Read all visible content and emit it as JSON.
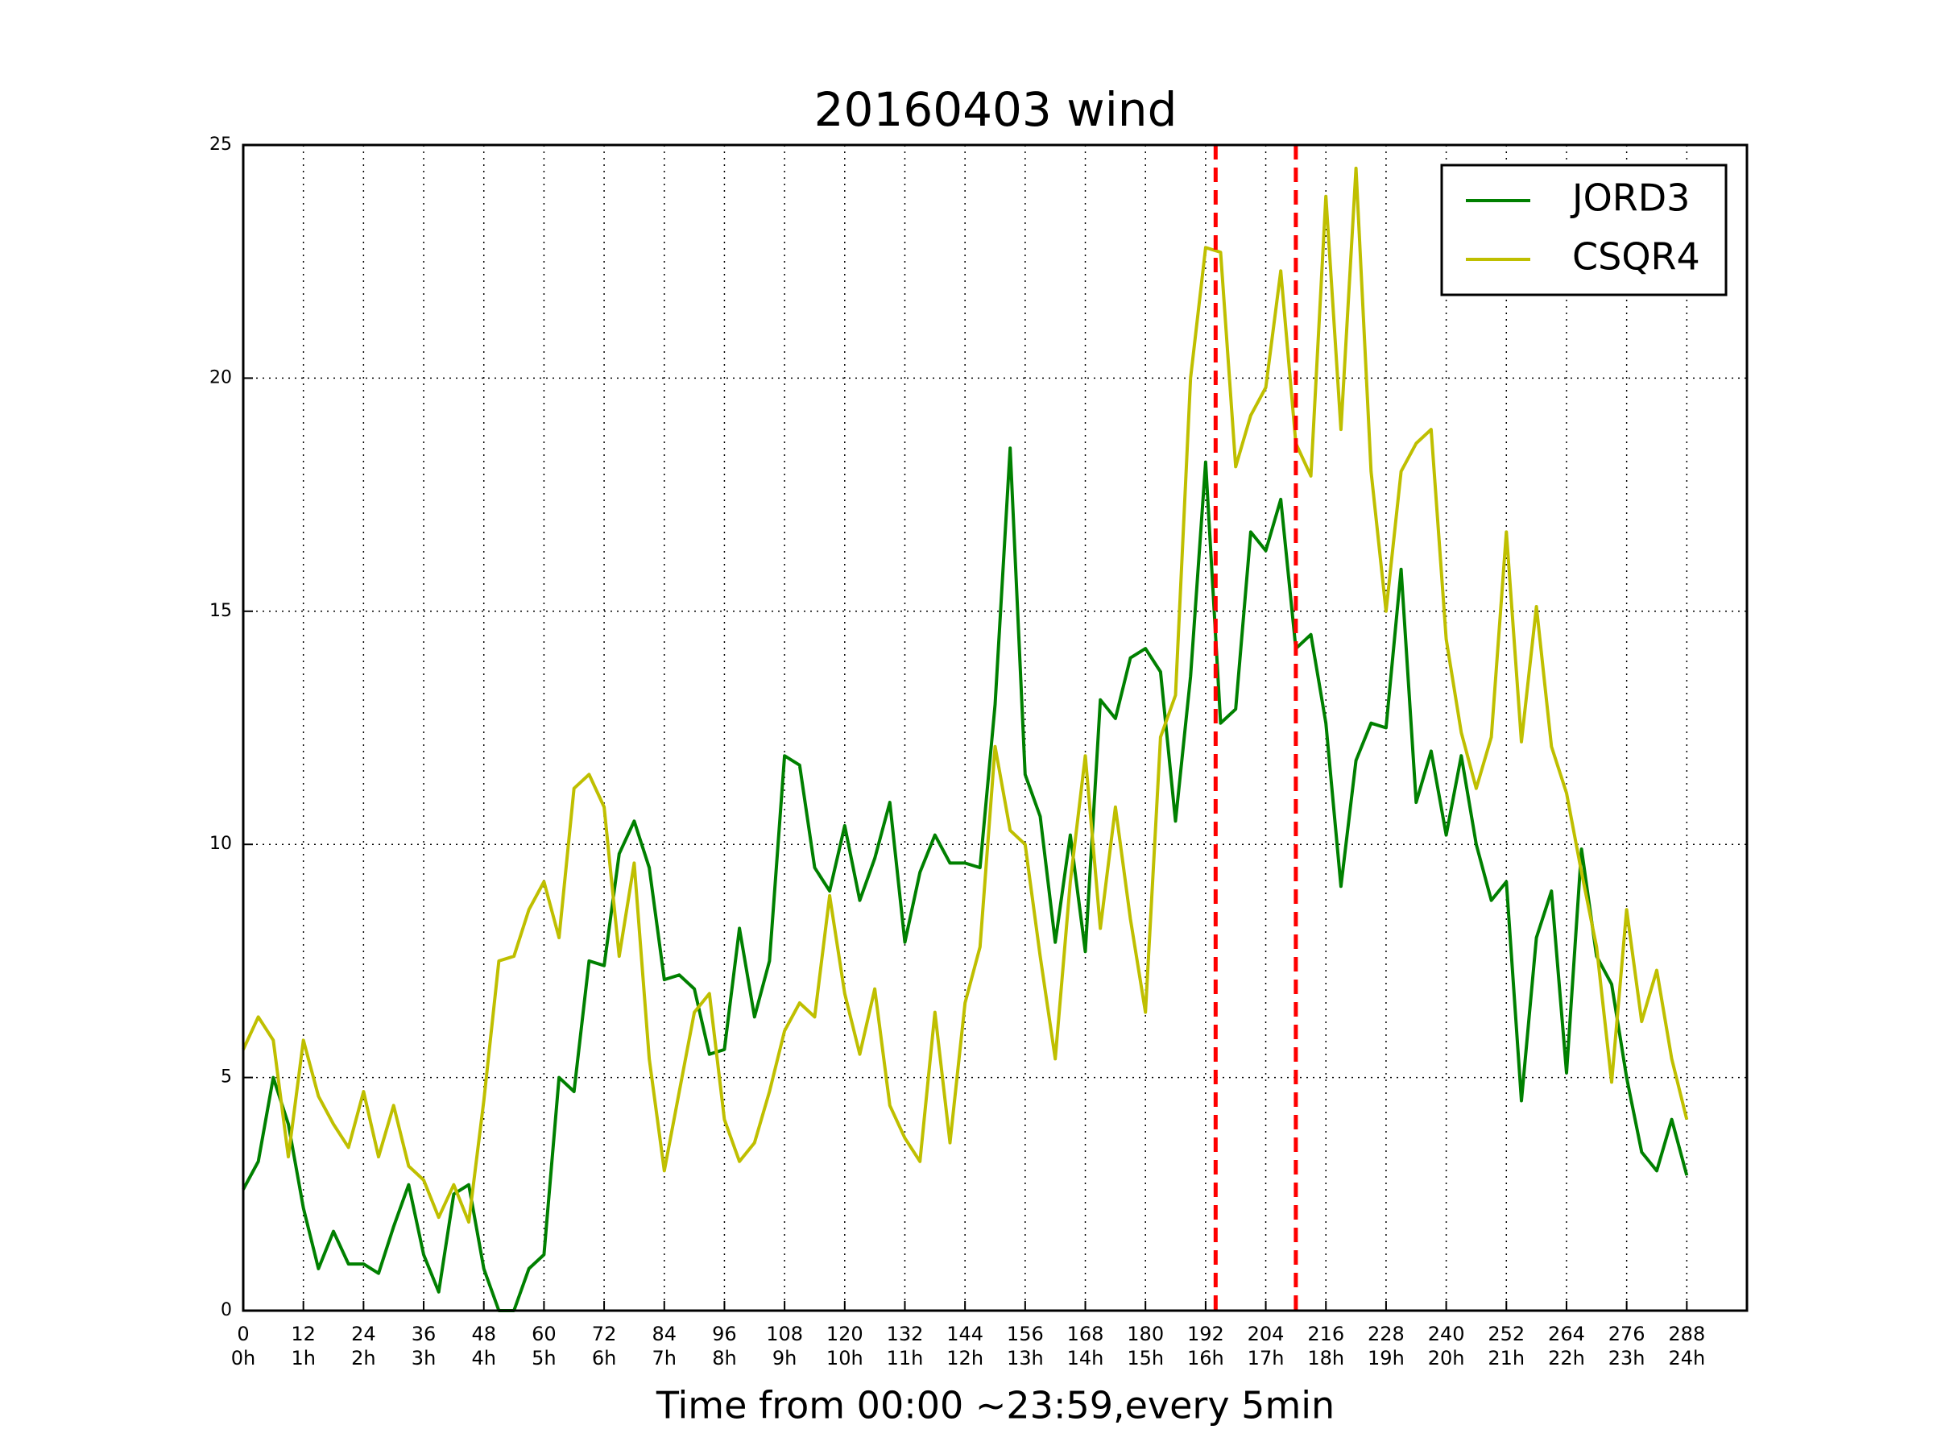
{
  "chart_data": {
    "type": "line",
    "title": "20160403 wind",
    "xlabel": "Time from 00:00 ~23:59,every 5min",
    "x": [
      0,
      3,
      6,
      9,
      12,
      15,
      18,
      21,
      24,
      27,
      30,
      33,
      36,
      39,
      42,
      45,
      48,
      51,
      54,
      57,
      60,
      63,
      66,
      69,
      72,
      75,
      78,
      81,
      84,
      87,
      90,
      93,
      96,
      99,
      102,
      105,
      108,
      111,
      114,
      117,
      120,
      123,
      126,
      129,
      132,
      135,
      138,
      141,
      144,
      147,
      150,
      153,
      156,
      159,
      162,
      165,
      168,
      171,
      174,
      177,
      180,
      183,
      186,
      189,
      192,
      195,
      198,
      201,
      204,
      207,
      210,
      213,
      216,
      219,
      222,
      225,
      228,
      231,
      234,
      237,
      240,
      243,
      246,
      249,
      252,
      255,
      258,
      261,
      264,
      267,
      270,
      273,
      276,
      279,
      282,
      285,
      288
    ],
    "series": [
      {
        "name": "JORD3",
        "color": "#008000",
        "values": [
          2.6,
          3.2,
          5.0,
          4.0,
          2.2,
          0.9,
          1.7,
          1.0,
          1.0,
          0.8,
          1.8,
          2.7,
          1.2,
          0.4,
          2.5,
          2.7,
          0.9,
          0,
          0,
          0.9,
          1.2,
          5.0,
          4.7,
          7.5,
          7.4,
          9.8,
          10.5,
          9.5,
          7.1,
          7.2,
          6.9,
          5.5,
          5.6,
          8.2,
          6.3,
          7.5,
          11.9,
          11.7,
          9.5,
          9.0,
          10.4,
          8.8,
          9.7,
          10.9,
          7.9,
          9.4,
          10.2,
          9.6,
          9.6,
          9.5,
          13.0,
          18.5,
          11.5,
          10.6,
          7.9,
          10.2,
          7.7,
          13.1,
          12.7,
          14.0,
          14.2,
          13.7,
          10.5,
          13.6,
          18.2,
          12.6,
          12.9,
          16.7,
          16.3,
          17.4,
          14.2,
          14.5,
          12.6,
          9.1,
          11.8,
          12.6,
          12.5,
          15.9,
          10.9,
          12.0,
          10.2,
          11.9,
          10.0,
          8.8,
          9.2,
          4.5,
          8.0,
          9.0,
          5.1,
          9.9,
          7.6,
          7.0,
          5.0,
          3.4,
          3.0,
          4.1,
          2.9
        ]
      },
      {
        "name": "CSQR4",
        "color": "#bfbf00",
        "values": [
          5.6,
          6.3,
          5.8,
          3.3,
          5.8,
          4.6,
          4.0,
          3.5,
          4.7,
          3.3,
          4.4,
          3.1,
          2.8,
          2.0,
          2.7,
          1.9,
          4.5,
          7.5,
          7.6,
          8.6,
          9.2,
          8.0,
          11.2,
          11.5,
          10.8,
          7.6,
          9.6,
          5.4,
          3.0,
          4.7,
          6.4,
          6.8,
          4.1,
          3.2,
          3.6,
          4.7,
          6.0,
          6.6,
          6.3,
          8.9,
          6.8,
          5.5,
          6.9,
          4.4,
          3.7,
          3.2,
          6.4,
          3.6,
          6.6,
          7.8,
          12.1,
          10.3,
          10.0,
          7.6,
          5.4,
          9.2,
          11.9,
          8.2,
          10.8,
          8.4,
          6.4,
          12.3,
          13.2,
          20.0,
          22.8,
          22.7,
          18.1,
          19.2,
          19.8,
          22.3,
          18.6,
          17.9,
          23.9,
          18.9,
          24.5,
          18.0,
          15.0,
          18.0,
          18.6,
          18.9,
          14.4,
          12.4,
          11.2,
          12.3,
          16.7,
          12.2,
          15.1,
          12.1,
          11.1,
          9.4,
          7.8,
          4.9,
          8.6,
          6.2,
          7.3,
          5.4,
          4.1
        ]
      }
    ],
    "vlines": [
      194,
      210
    ],
    "vline_color": "#ff0000",
    "xlim": [
      0,
      300
    ],
    "ylim": [
      0,
      25
    ],
    "xticks": [
      0,
      12,
      24,
      36,
      48,
      60,
      72,
      84,
      96,
      108,
      120,
      132,
      144,
      156,
      168,
      180,
      192,
      204,
      216,
      228,
      240,
      252,
      264,
      276,
      288
    ],
    "xtick_sublabels": [
      "0h",
      "1h",
      "2h",
      "3h",
      "4h",
      "5h",
      "6h",
      "7h",
      "8h",
      "9h",
      "10h",
      "11h",
      "12h",
      "13h",
      "14h",
      "15h",
      "16h",
      "17h",
      "18h",
      "19h",
      "20h",
      "21h",
      "22h",
      "23h",
      "24h"
    ],
    "yticks": [
      0,
      5,
      10,
      15,
      20,
      25
    ],
    "grid": true,
    "legend": "upper right"
  }
}
